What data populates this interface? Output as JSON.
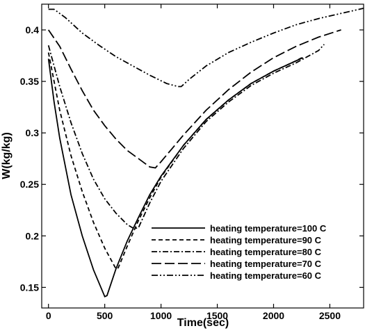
{
  "chart_data": {
    "type": "line",
    "title": "",
    "xlabel": "Time(sec)",
    "ylabel": "W(kg/kg)",
    "xlim": [
      -60,
      2800
    ],
    "ylim": [
      0.13,
      0.425
    ],
    "x_ticks": [
      0,
      500,
      1000,
      1500,
      2000,
      2500
    ],
    "y_ticks": [
      0.15,
      0.2,
      0.25,
      0.3,
      0.35,
      0.4
    ],
    "x_tick_labels": [
      "0",
      "500",
      "1000",
      "1500",
      "2000",
      "2500"
    ],
    "y_tick_labels": [
      "0.15",
      "0.2",
      "0.25",
      "0.3",
      "0.35",
      "0.4"
    ],
    "grid": false,
    "legend_position": "bottom-right",
    "series": [
      {
        "name": "heating temperature=100 C",
        "dash": "solid",
        "points": [
          [
            0,
            0.372
          ],
          [
            50,
            0.33
          ],
          [
            100,
            0.295
          ],
          [
            200,
            0.24
          ],
          [
            300,
            0.2
          ],
          [
            400,
            0.167
          ],
          [
            500,
            0.141
          ],
          [
            520,
            0.142
          ],
          [
            600,
            0.168
          ],
          [
            700,
            0.195
          ],
          [
            800,
            0.218
          ],
          [
            900,
            0.24
          ],
          [
            1000,
            0.258
          ],
          [
            1200,
            0.288
          ],
          [
            1400,
            0.313
          ],
          [
            1600,
            0.332
          ],
          [
            1800,
            0.348
          ],
          [
            2000,
            0.36
          ],
          [
            2200,
            0.37
          ],
          [
            2260,
            0.373
          ]
        ]
      },
      {
        "name": "heating temperature=90 C",
        "dash": "dashed",
        "points": [
          [
            0,
            0.378
          ],
          [
            100,
            0.322
          ],
          [
            200,
            0.278
          ],
          [
            300,
            0.243
          ],
          [
            400,
            0.213
          ],
          [
            500,
            0.188
          ],
          [
            600,
            0.168
          ],
          [
            620,
            0.169
          ],
          [
            700,
            0.19
          ],
          [
            800,
            0.215
          ],
          [
            900,
            0.237
          ],
          [
            1000,
            0.257
          ],
          [
            1200,
            0.288
          ],
          [
            1400,
            0.313
          ],
          [
            1600,
            0.332
          ],
          [
            1800,
            0.348
          ],
          [
            2000,
            0.36
          ],
          [
            2200,
            0.37
          ],
          [
            2250,
            0.373
          ]
        ]
      },
      {
        "name": "heating temperature=80 C",
        "dash": "dash-dot",
        "points": [
          [
            0,
            0.385
          ],
          [
            100,
            0.345
          ],
          [
            200,
            0.31
          ],
          [
            300,
            0.28
          ],
          [
            400,
            0.255
          ],
          [
            500,
            0.236
          ],
          [
            600,
            0.222
          ],
          [
            700,
            0.211
          ],
          [
            760,
            0.207
          ],
          [
            800,
            0.208
          ],
          [
            900,
            0.232
          ],
          [
            1000,
            0.253
          ],
          [
            1200,
            0.285
          ],
          [
            1400,
            0.311
          ],
          [
            1600,
            0.33
          ],
          [
            1800,
            0.346
          ],
          [
            2000,
            0.358
          ],
          [
            2200,
            0.368
          ],
          [
            2400,
            0.38
          ],
          [
            2450,
            0.386
          ]
        ]
      },
      {
        "name": "heating temperature=70 C",
        "dash": "long-dash",
        "points": [
          [
            0,
            0.4
          ],
          [
            100,
            0.384
          ],
          [
            200,
            0.362
          ],
          [
            300,
            0.341
          ],
          [
            400,
            0.322
          ],
          [
            500,
            0.307
          ],
          [
            600,
            0.294
          ],
          [
            700,
            0.283
          ],
          [
            800,
            0.275
          ],
          [
            900,
            0.267
          ],
          [
            950,
            0.266
          ],
          [
            1000,
            0.272
          ],
          [
            1100,
            0.285
          ],
          [
            1200,
            0.298
          ],
          [
            1400,
            0.322
          ],
          [
            1600,
            0.342
          ],
          [
            1800,
            0.359
          ],
          [
            2000,
            0.373
          ],
          [
            2200,
            0.384
          ],
          [
            2400,
            0.393
          ],
          [
            2600,
            0.4
          ]
        ]
      },
      {
        "name": "heating temperature=60 C",
        "dash": "dash-dot-dot",
        "points": [
          [
            0,
            0.42
          ],
          [
            50,
            0.42
          ],
          [
            150,
            0.412
          ],
          [
            300,
            0.397
          ],
          [
            450,
            0.385
          ],
          [
            600,
            0.374
          ],
          [
            750,
            0.365
          ],
          [
            900,
            0.356
          ],
          [
            1050,
            0.348
          ],
          [
            1150,
            0.345
          ],
          [
            1180,
            0.345
          ],
          [
            1250,
            0.352
          ],
          [
            1400,
            0.365
          ],
          [
            1600,
            0.378
          ],
          [
            1800,
            0.388
          ],
          [
            2000,
            0.397
          ],
          [
            2200,
            0.405
          ],
          [
            2400,
            0.411
          ],
          [
            2600,
            0.416
          ],
          [
            2800,
            0.421
          ]
        ]
      }
    ]
  }
}
